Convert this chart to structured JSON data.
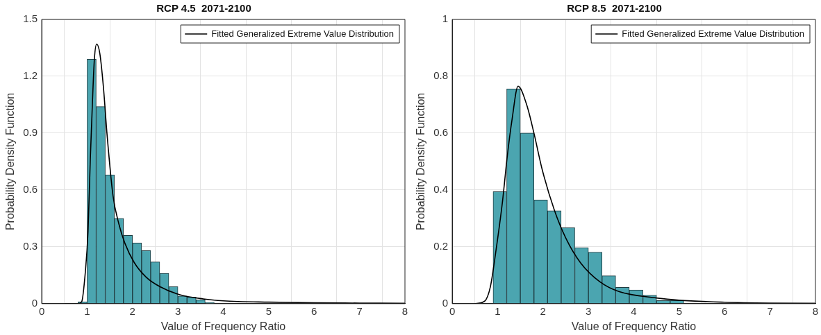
{
  "chart_data": [
    {
      "type": "histogram",
      "title": "RCP 4.5  2071-2100",
      "xlabel": "Value of Frequency Ratio",
      "ylabel": "Probability Density Function",
      "xlim": [
        0,
        8
      ],
      "xticks": [
        0,
        1,
        2,
        3,
        4,
        5,
        6,
        7,
        8
      ],
      "ylim": [
        0,
        1.5
      ],
      "yticks": [
        0,
        0.3,
        0.6,
        0.9,
        1.2,
        1.5
      ],
      "grid": true,
      "legend": "top right",
      "series": [
        {
          "color": "#4ba5b0",
          "bins": [
            0.8,
            1.0,
            1.2,
            1.4,
            1.6,
            1.8,
            2.0,
            2.2,
            2.4,
            2.6,
            2.8,
            3.0,
            3.2,
            3.4,
            3.6,
            3.8
          ],
          "values": [
            0.01,
            1.29,
            1.04,
            0.68,
            0.45,
            0.36,
            0.32,
            0.28,
            0.22,
            0.16,
            0.09,
            0.04,
            0.035,
            0.02,
            0.006
          ]
        },
        {
          "type": "line",
          "name": "Fitted Generalized Extreme Value Distribution",
          "color": "#000000",
          "x": [
            0.5,
            0.8,
            0.88,
            0.96,
            1.02,
            1.07,
            1.12,
            1.16,
            1.21,
            1.28,
            1.36,
            1.44,
            1.57,
            1.7,
            1.83,
            2.04,
            2.3,
            2.61,
            3.03,
            3.56,
            4,
            5,
            6,
            7,
            8
          ],
          "values": [
            0,
            0,
            0.01,
            0.165,
            0.38,
            0.76,
            1.08,
            1.29,
            1.37,
            1.32,
            1.14,
            0.89,
            0.57,
            0.42,
            0.32,
            0.216,
            0.14,
            0.089,
            0.048,
            0.025,
            0.015,
            0.008,
            0.005,
            0.003,
            0.002
          ]
        }
      ]
    },
    {
      "type": "histogram",
      "title": "RCP 8.5  2071-2100",
      "xlabel": "Value of Frequency Ratio",
      "ylabel": "Probability Density Function",
      "xlim": [
        0,
        8
      ],
      "xticks": [
        0,
        1,
        2,
        3,
        4,
        5,
        6,
        7,
        8
      ],
      "ylim": [
        0,
        1
      ],
      "yticks": [
        0,
        0.2,
        0.4,
        0.6,
        0.8,
        1
      ],
      "grid": true,
      "legend": "top right",
      "series": [
        {
          "color": "#4ba5b0",
          "bins": [
            0.9,
            1.2,
            1.5,
            1.8,
            2.1,
            2.4,
            2.7,
            3.0,
            3.3,
            3.6,
            3.9,
            4.2,
            4.5,
            4.8,
            5.1
          ],
          "values": [
            0.394,
            0.756,
            0.6,
            0.365,
            0.327,
            0.267,
            0.197,
            0.181,
            0.098,
            0.057,
            0.048,
            0.03,
            0.011,
            0.011
          ]
        },
        {
          "type": "line",
          "name": "Fitted Generalized Extreme Value Distribution",
          "color": "#000000",
          "x": [
            0.49,
            0.71,
            0.84,
            0.97,
            1.11,
            1.21,
            1.32,
            1.45,
            1.64,
            1.8,
            1.98,
            2.25,
            2.51,
            2.83,
            3.26,
            3.68,
            4.5,
            5,
            6,
            7,
            8
          ],
          "values": [
            0,
            0.008,
            0.059,
            0.194,
            0.363,
            0.515,
            0.65,
            0.765,
            0.7,
            0.6,
            0.473,
            0.329,
            0.228,
            0.143,
            0.076,
            0.042,
            0.02,
            0.012,
            0.005,
            0.002,
            0.001
          ]
        }
      ]
    }
  ]
}
